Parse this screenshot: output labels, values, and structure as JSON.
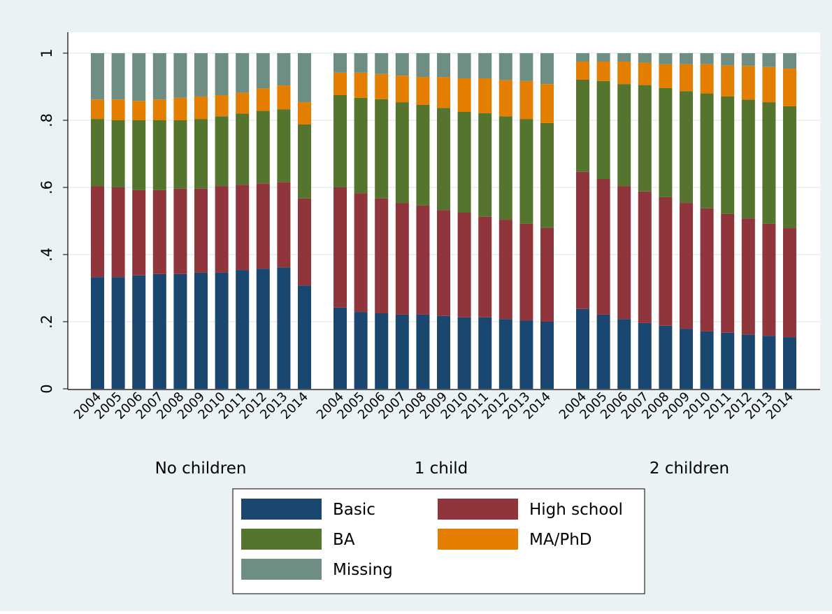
{
  "colors": {
    "outer_background": "#eaf2f3",
    "plot_background": "#ffffff",
    "gridline": "#eaf2f3",
    "axis": "#000000"
  },
  "chart_data": {
    "type": "bar",
    "stacked": true,
    "title": "",
    "xlabel": "",
    "ylabel": "",
    "ylim": [
      0,
      1
    ],
    "yticks": [
      0,
      0.2,
      0.4,
      0.6,
      0.8,
      1
    ],
    "ytick_labels": [
      "0",
      ".2",
      ".4",
      ".6",
      ".8",
      "1"
    ],
    "grid": true,
    "legend_position": "bottom",
    "x_tick_labels": [
      "2004",
      "2005",
      "2006",
      "2007",
      "2008",
      "2009",
      "2010",
      "2011",
      "2012",
      "2013",
      "2014"
    ],
    "groups": [
      {
        "label": "No children",
        "years": [
          "2004",
          "2005",
          "2006",
          "2007",
          "2008",
          "2009",
          "2010",
          "2011",
          "2012",
          "2013",
          "2014"
        ],
        "series": [
          {
            "name": "Basic",
            "color": "#1a476f",
            "values": [
              0.333,
              0.333,
              0.338,
              0.342,
              0.342,
              0.346,
              0.346,
              0.354,
              0.358,
              0.362,
              0.308
            ]
          },
          {
            "name": "High school",
            "color": "#90353b",
            "values": [
              0.271,
              0.267,
              0.254,
              0.25,
              0.254,
              0.25,
              0.258,
              0.254,
              0.254,
              0.254,
              0.259
            ]
          },
          {
            "name": "BA",
            "color": "#55752f",
            "values": [
              0.2,
              0.2,
              0.208,
              0.208,
              0.204,
              0.208,
              0.208,
              0.212,
              0.216,
              0.217,
              0.221
            ]
          },
          {
            "name": "MA/PhD",
            "color": "#e37e00",
            "values": [
              0.058,
              0.062,
              0.058,
              0.062,
              0.067,
              0.067,
              0.063,
              0.062,
              0.067,
              0.071,
              0.066
            ]
          },
          {
            "name": "Missing",
            "color": "#6e8e84",
            "values": [
              0.138,
              0.138,
              0.142,
              0.138,
              0.133,
              0.129,
              0.125,
              0.118,
              0.105,
              0.096,
              0.146
            ]
          }
        ]
      },
      {
        "label": "1 child",
        "years": [
          "2004",
          "2005",
          "2006",
          "2007",
          "2008",
          "2009",
          "2010",
          "2011",
          "2012",
          "2013",
          "2014"
        ],
        "series": [
          {
            "name": "Basic",
            "color": "#1a476f",
            "values": [
              0.242,
              0.229,
              0.225,
              0.221,
              0.221,
              0.217,
              0.213,
              0.213,
              0.208,
              0.204,
              0.2
            ]
          },
          {
            "name": "High school",
            "color": "#90353b",
            "values": [
              0.358,
              0.354,
              0.342,
              0.333,
              0.325,
              0.316,
              0.312,
              0.3,
              0.296,
              0.288,
              0.28
            ]
          },
          {
            "name": "BA",
            "color": "#55752f",
            "values": [
              0.275,
              0.284,
              0.296,
              0.3,
              0.3,
              0.304,
              0.3,
              0.308,
              0.308,
              0.312,
              0.312
            ]
          },
          {
            "name": "MA/PhD",
            "color": "#e37e00",
            "values": [
              0.067,
              0.075,
              0.075,
              0.079,
              0.083,
              0.092,
              0.1,
              0.104,
              0.108,
              0.113,
              0.116
            ]
          },
          {
            "name": "Missing",
            "color": "#6e8e84",
            "values": [
              0.058,
              0.058,
              0.062,
              0.067,
              0.071,
              0.071,
              0.075,
              0.075,
              0.08,
              0.083,
              0.092
            ]
          }
        ]
      },
      {
        "label": "2 children",
        "years": [
          "2004",
          "2005",
          "2006",
          "2007",
          "2008",
          "2009",
          "2010",
          "2011",
          "2012",
          "2013",
          "2014"
        ],
        "series": [
          {
            "name": "Basic",
            "color": "#1a476f",
            "values": [
              0.238,
              0.221,
              0.208,
              0.196,
              0.188,
              0.179,
              0.171,
              0.167,
              0.162,
              0.158,
              0.154
            ]
          },
          {
            "name": "High school",
            "color": "#90353b",
            "values": [
              0.408,
              0.404,
              0.396,
              0.392,
              0.383,
              0.375,
              0.367,
              0.354,
              0.346,
              0.334,
              0.325
            ]
          },
          {
            "name": "BA",
            "color": "#55752f",
            "values": [
              0.275,
              0.292,
              0.304,
              0.317,
              0.325,
              0.333,
              0.342,
              0.35,
              0.354,
              0.362,
              0.363
            ]
          },
          {
            "name": "MA/PhD",
            "color": "#e37e00",
            "values": [
              0.054,
              0.058,
              0.067,
              0.067,
              0.071,
              0.08,
              0.087,
              0.092,
              0.1,
              0.105,
              0.112
            ]
          },
          {
            "name": "Missing",
            "color": "#6e8e84",
            "values": [
              0.025,
              0.025,
              0.025,
              0.028,
              0.033,
              0.033,
              0.033,
              0.037,
              0.038,
              0.041,
              0.046
            ]
          }
        ]
      }
    ],
    "legend": [
      {
        "label": "Basic",
        "color": "#1a476f"
      },
      {
        "label": "High school",
        "color": "#90353b"
      },
      {
        "label": "BA",
        "color": "#55752f"
      },
      {
        "label": "MA/PhD",
        "color": "#e37e00"
      },
      {
        "label": "Missing",
        "color": "#6e8e84"
      }
    ]
  }
}
